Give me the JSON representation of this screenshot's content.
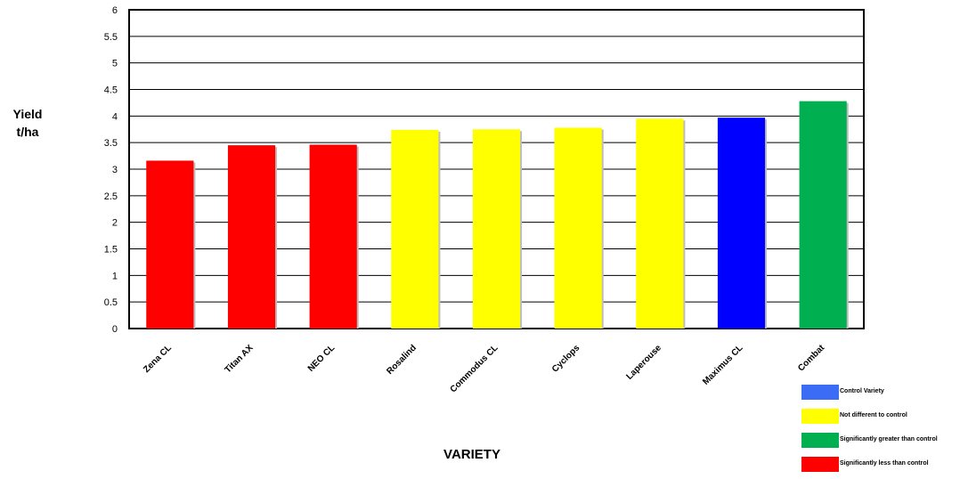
{
  "chart_data": {
    "type": "bar",
    "categories": [
      "Zena CL",
      "Titan AX",
      "NEO CL",
      "Rosalind",
      "Commodus CL",
      "Cyclops",
      "Laperouse",
      "Maximus CL",
      "Combat"
    ],
    "values": [
      3.16,
      3.45,
      3.46,
      3.74,
      3.75,
      3.78,
      3.95,
      3.97,
      4.28
    ],
    "bar_groups": [
      "less",
      "less",
      "less",
      "same",
      "same",
      "same",
      "same",
      "control",
      "greater"
    ],
    "title": "",
    "xlabel": "VARIETY",
    "ylabel_line1": "Yield",
    "ylabel_line2": "t/ha",
    "ylim": [
      0,
      6
    ],
    "yticks": [
      "0",
      "0.5",
      "1",
      "1.5",
      "2",
      "2.5",
      "3",
      "3.5",
      "4",
      "4.5",
      "5",
      "5.5",
      "6"
    ],
    "grid": "horizontal",
    "legend_position": "bottom-right",
    "legend": [
      {
        "label": "Control Variety",
        "color": "#3b6cf6"
      },
      {
        "label": "Not different to control",
        "color": "#ffff00"
      },
      {
        "label": "Significantly greater than control",
        "color": "#00b050"
      },
      {
        "label": "Significantly less than control",
        "color": "#ff0000"
      }
    ],
    "colors": {
      "less": "#ff0000",
      "same": "#ffff00",
      "greater": "#00b050",
      "control": "#0000ff"
    }
  }
}
